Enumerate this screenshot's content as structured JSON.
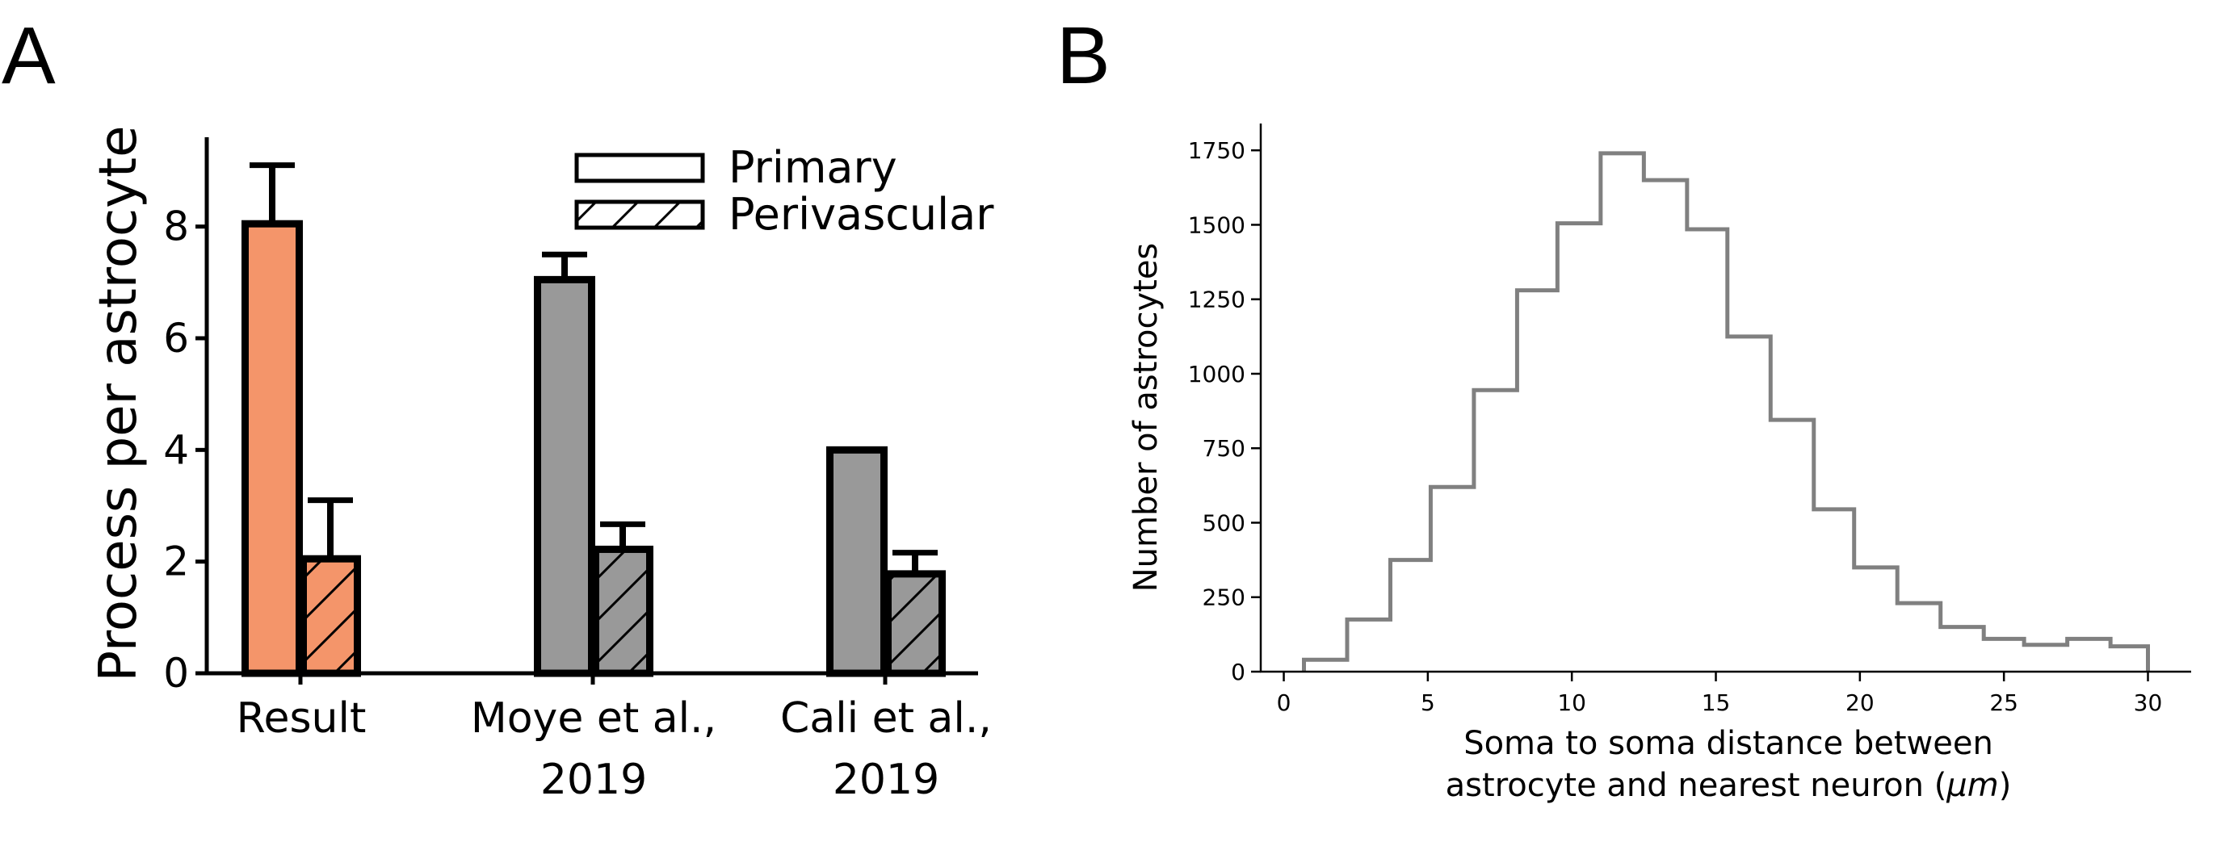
{
  "panels": {
    "a_letter": "A",
    "b_letter": "B"
  },
  "chart_data": [
    {
      "type": "bar",
      "ylabel": "Process per astrocyte",
      "ylim": [
        0,
        9.6
      ],
      "yticks": [
        0,
        2,
        4,
        6,
        8
      ],
      "categories": [
        {
          "line1": "Result",
          "line2": ""
        },
        {
          "line1": "Moye et al.,",
          "line2": "2019"
        },
        {
          "line1": "Cali et al.,",
          "line2": "2019"
        }
      ],
      "series": [
        {
          "name": "Primary",
          "values": [
            8.05,
            7.05,
            4.0
          ],
          "errors": [
            1.05,
            0.45,
            null
          ],
          "hatch": false
        },
        {
          "name": "Perivascular",
          "values": [
            2.05,
            2.22,
            1.78
          ],
          "errors": [
            1.05,
            0.45,
            0.38
          ],
          "hatch": true
        }
      ],
      "bar_colors": [
        "#F4956A",
        "#999999",
        "#999999"
      ],
      "legend_position": "top-right"
    },
    {
      "type": "histogram",
      "xlabel_line1": "Soma to soma distance between",
      "xlabel_line2_prefix": "astrocyte and nearest neuron (",
      "xlabel_unit": "μm",
      "xlabel_line2_suffix": ")",
      "ylabel": "Number of astrocytes",
      "xlim": [
        -0.8,
        31.5
      ],
      "ylim": [
        0,
        1840
      ],
      "xticks": [
        0,
        5,
        10,
        15,
        20,
        25,
        30
      ],
      "yticks": [
        0,
        250,
        500,
        750,
        1000,
        1250,
        1500,
        1750
      ],
      "bin_edges": [
        0.7,
        2.2,
        3.7,
        5.1,
        6.6,
        8.1,
        9.5,
        11.0,
        12.5,
        14.0,
        15.4,
        16.9,
        18.4,
        19.8,
        21.3,
        22.8,
        24.3,
        25.7,
        27.2,
        28.7,
        30.0
      ],
      "counts": [
        40,
        175,
        375,
        620,
        945,
        1280,
        1505,
        1740,
        1650,
        1485,
        1125,
        845,
        545,
        350,
        230,
        150,
        110,
        90,
        110,
        85
      ],
      "color": "#808080"
    }
  ]
}
